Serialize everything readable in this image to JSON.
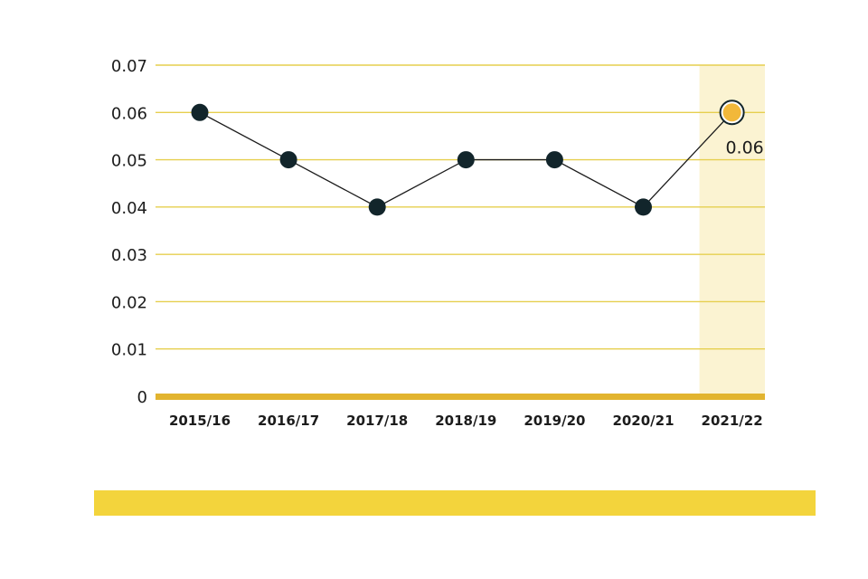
{
  "chart_data": {
    "type": "line",
    "categories": [
      "2015/16",
      "2016/17",
      "2017/18",
      "2018/19",
      "2019/20",
      "2020/21",
      "2021/22"
    ],
    "series": [
      {
        "values": [
          0.06,
          0.05,
          0.04,
          0.05,
          0.05,
          0.04,
          0.06
        ]
      }
    ],
    "ylim": [
      0,
      0.07
    ],
    "yticks": [
      "0",
      "0.01",
      "0.02",
      "0.03",
      "0.04",
      "0.05",
      "0.06",
      "0.07"
    ],
    "grid": true,
    "highlight_category": "2021/22",
    "data_labels": [
      {
        "category": "2021/22",
        "text": "0.06"
      }
    ]
  },
  "colors": {
    "grid": "#e6cf4f",
    "baseline": "#e2b42f",
    "highlight_band": "#fbf3d2",
    "marker": "#12252b",
    "highlight_marker": "#f2b83a",
    "line": "#1b1b1b",
    "footer_bar": "#f3d43c"
  }
}
